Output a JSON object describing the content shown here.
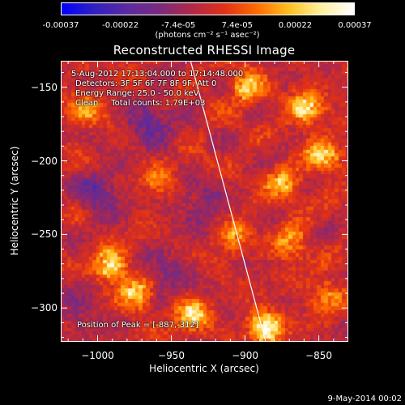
{
  "chart_data": {
    "type": "heatmap",
    "title": "Reconstructed RHESSI Image",
    "xlabel": "Heliocentric X (arcsec)",
    "ylabel": "Heliocentric Y (arcsec)",
    "xlim": [
      -1025,
      -830
    ],
    "ylim": [
      -323,
      -132
    ],
    "x_ticks": [
      -1000,
      -950,
      -900,
      -850
    ],
    "y_ticks": [
      -150,
      -200,
      -250,
      -300
    ],
    "x_tick_labels": [
      "−1000",
      "−950",
      "−900",
      "−850"
    ],
    "y_tick_labels": [
      "−150",
      "−200",
      "−250",
      "−300"
    ],
    "colorbar": {
      "min": -0.00037,
      "max": 0.00037,
      "tick_values": [
        -0.00037,
        -0.00022,
        -7.4e-05,
        7.4e-05,
        0.00022,
        0.00037
      ],
      "tick_labels": [
        "-0.00037",
        "-0.00022",
        "-7.4e-05",
        "7.4e-05",
        "0.00022",
        "0.00037"
      ],
      "unit": "(photons cm⁻² s⁻¹ asec⁻²)",
      "colors": [
        "#0000ff",
        "#3020c0",
        "#5a2aa0",
        "#7a2a80",
        "#b02848",
        "#e03018",
        "#ff6a00",
        "#ffc020",
        "#fff0a0",
        "#ffffff"
      ]
    },
    "annotations": [
      "5-Aug-2012 17:13:04.000 to 17:14:48.000",
      "Detectors: 3F 5F 6F 7F 8F 9F, Att 0",
      "Energy Range: 25.0 - 50.0 keV",
      "Clean     Total counts: 1.79E+03"
    ],
    "peak_label": "Position of Peak = [-887,-312]",
    "peak": {
      "x": -887,
      "y": -312
    },
    "limb_line": [
      [
        -937,
        -132
      ],
      [
        -886,
        -323
      ]
    ],
    "hot_regions": [
      {
        "x": -992,
        "y": -270,
        "value": 0.00034
      },
      {
        "x": -975,
        "y": -290,
        "value": 0.00028
      },
      {
        "x": -937,
        "y": -305,
        "value": 0.0003
      },
      {
        "x": -887,
        "y": -312,
        "value": 0.00037
      },
      {
        "x": -860,
        "y": -163,
        "value": 0.00032
      },
      {
        "x": -848,
        "y": -195,
        "value": 0.0003
      },
      {
        "x": -900,
        "y": -150,
        "value": 0.00026
      },
      {
        "x": -875,
        "y": -215,
        "value": 0.00024
      },
      {
        "x": -910,
        "y": -250,
        "value": 0.0002
      },
      {
        "x": -1010,
        "y": -165,
        "value": 0.0002
      },
      {
        "x": -870,
        "y": -255,
        "value": 0.00022
      },
      {
        "x": -845,
        "y": -290,
        "value": 0.0002
      },
      {
        "x": -960,
        "y": -210,
        "value": 0.00015
      }
    ],
    "cold_regions": [
      {
        "x": -965,
        "y": -175,
        "value": -0.0002
      },
      {
        "x": -1000,
        "y": -220,
        "value": -0.00018
      },
      {
        "x": -930,
        "y": -230,
        "value": -0.00016
      },
      {
        "x": -955,
        "y": -275,
        "value": -0.00014
      },
      {
        "x": -1015,
        "y": -300,
        "value": -0.00012
      }
    ]
  },
  "footer": "9-May-2014 00:02"
}
